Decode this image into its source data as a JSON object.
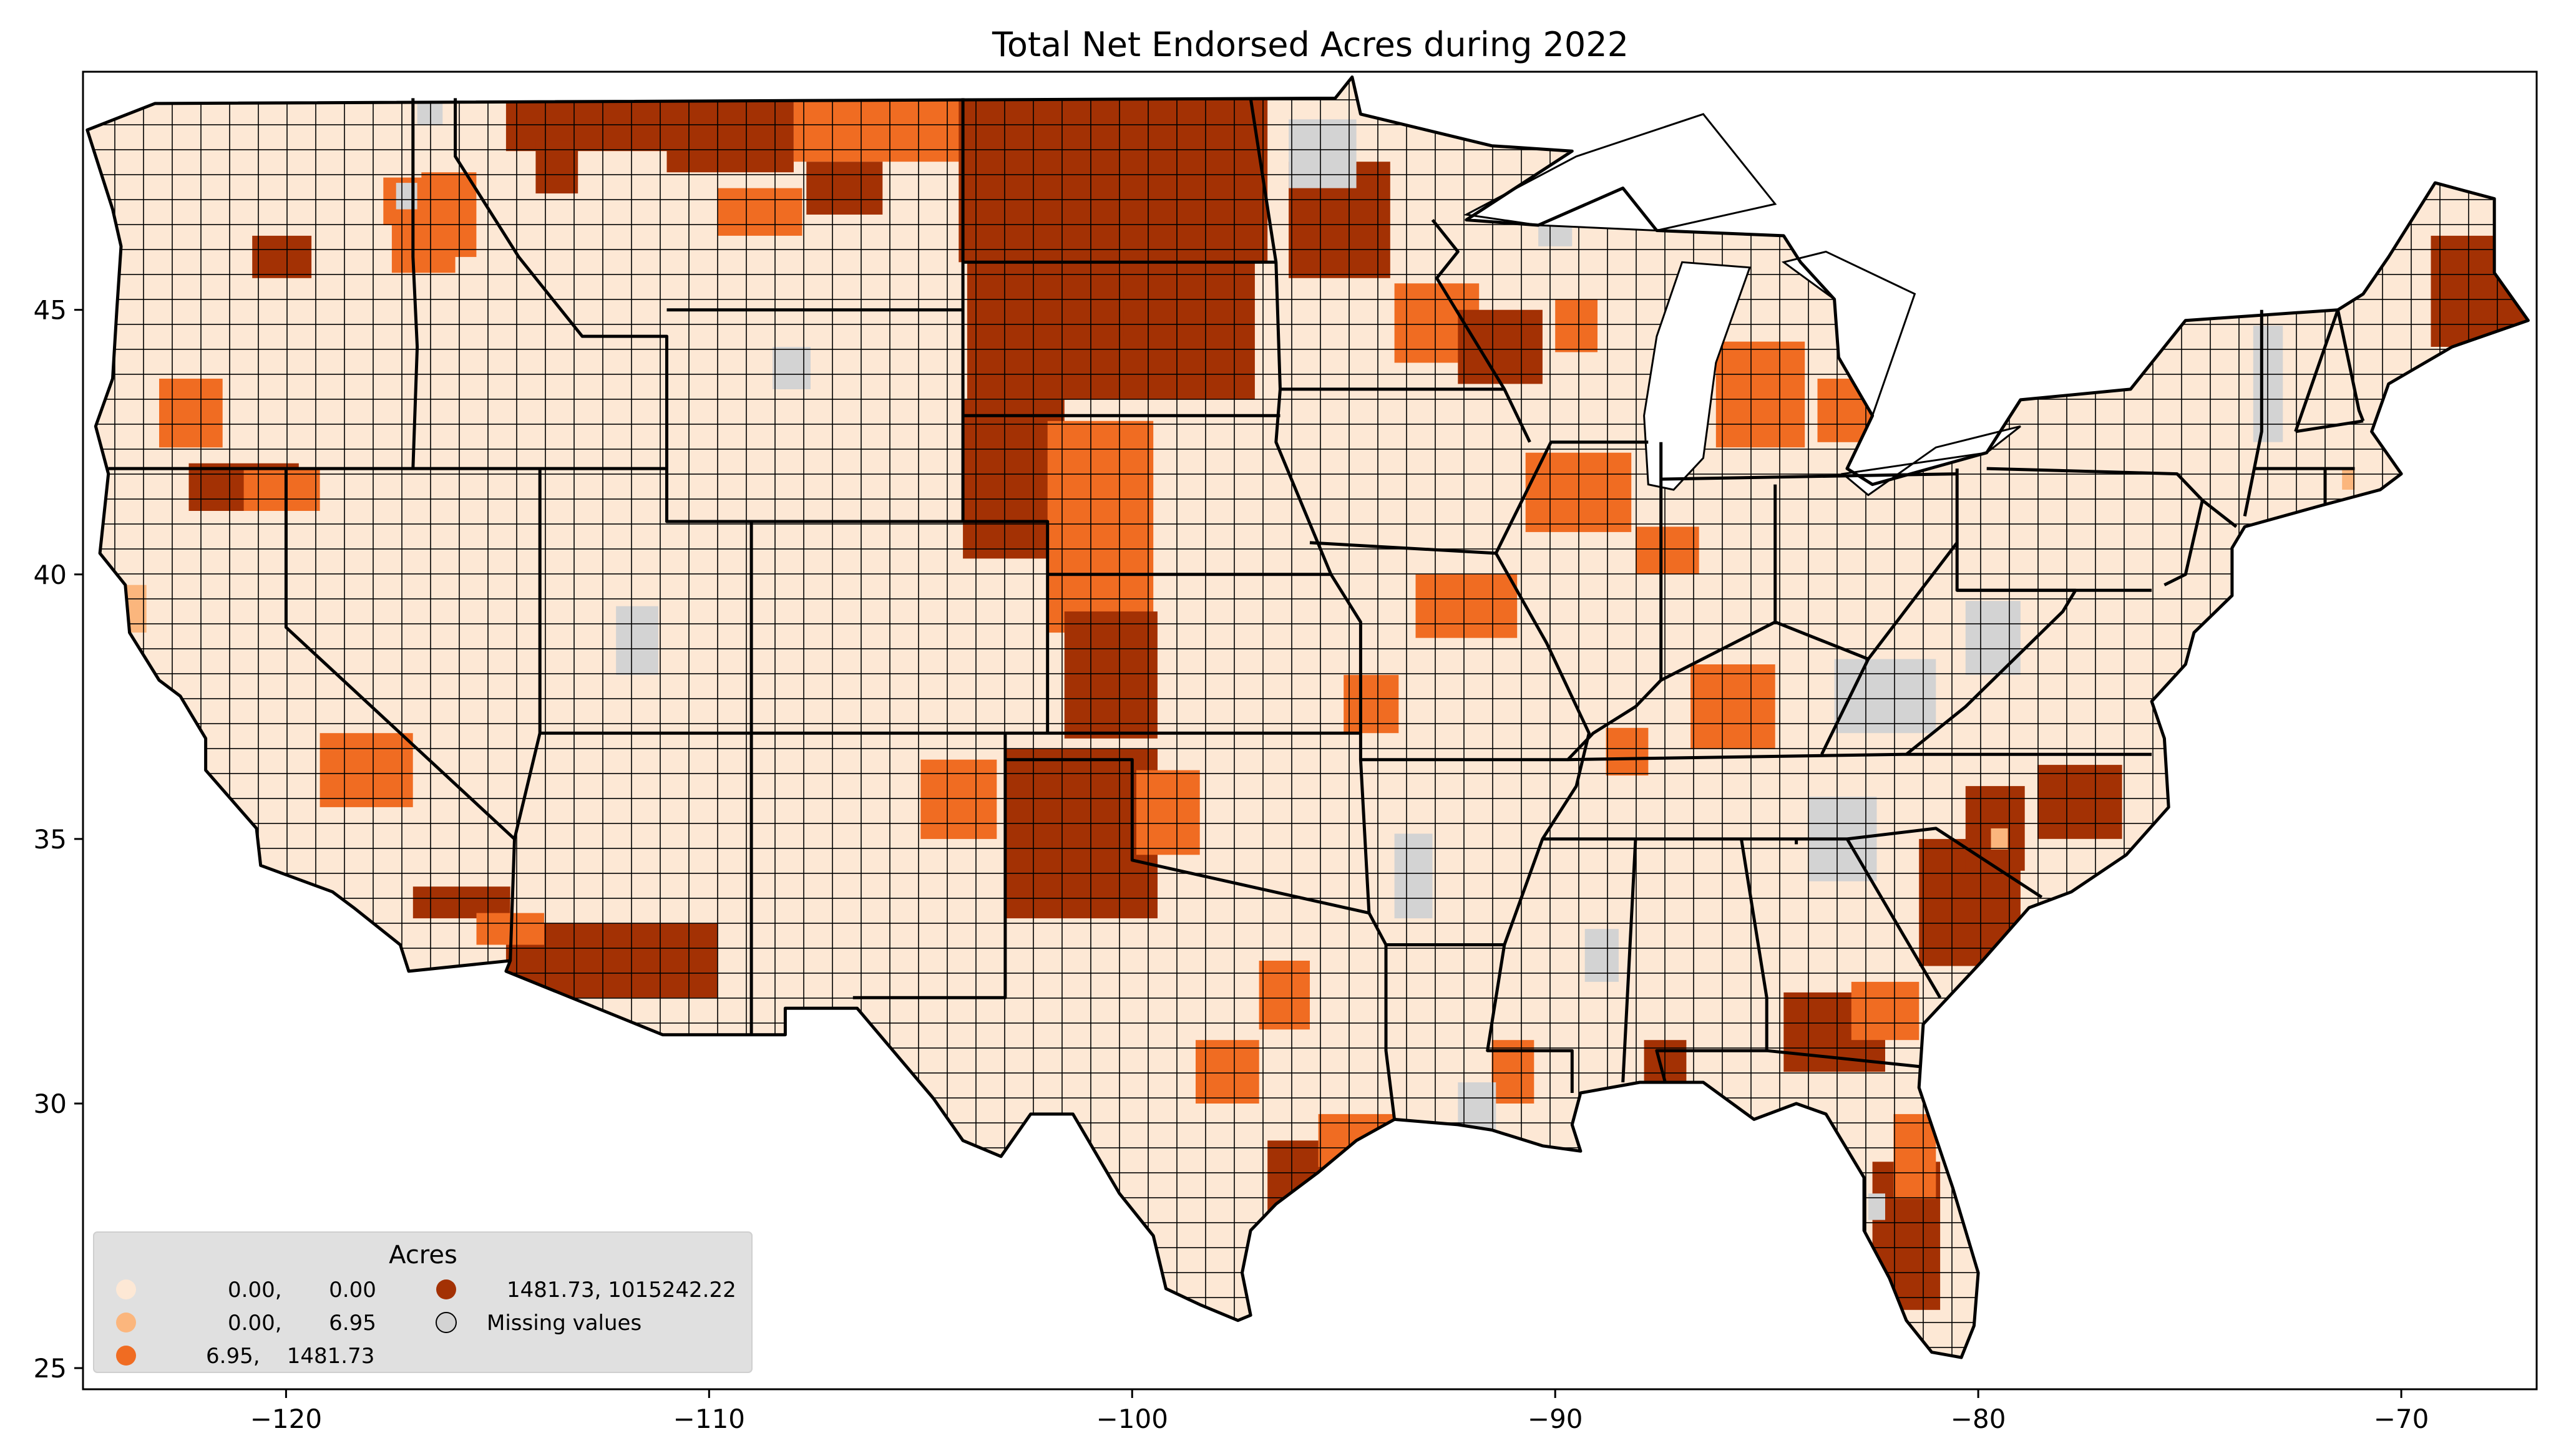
{
  "map": {
    "title": "Total Net Endorsed Acres during 2022",
    "x_ticks": [
      "−120",
      "−110",
      "−100",
      "−90",
      "−80",
      "−70"
    ],
    "x_tick_values": [
      -120,
      -110,
      -100,
      -90,
      -80,
      -70
    ],
    "y_ticks": [
      "25",
      "30",
      "35",
      "40",
      "45"
    ],
    "y_tick_values": [
      25,
      30,
      35,
      40,
      45
    ],
    "xlim": [
      -124.8,
      -66.8
    ],
    "ylim": [
      24.6,
      49.5
    ],
    "colors": {
      "class0": "#fde8d5",
      "class1": "#fbb67d",
      "class2": "#f06c22",
      "class3": "#a33104",
      "missing": "#d3d3d3",
      "legend_bg": "#e0e0e0"
    }
  },
  "legend": {
    "title": "Acres",
    "items": [
      {
        "label": "0.00,       0.00",
        "color": "#fde8d5"
      },
      {
        "label": "0.00,       6.95",
        "color": "#fbb67d"
      },
      {
        "label": "6.95,    1481.73",
        "color": "#f06c22"
      },
      {
        "label": "1481.73, 1015242.22",
        "color": "#a33104"
      },
      {
        "label": "Missing values",
        "color": "#d3d3d3"
      }
    ]
  }
}
